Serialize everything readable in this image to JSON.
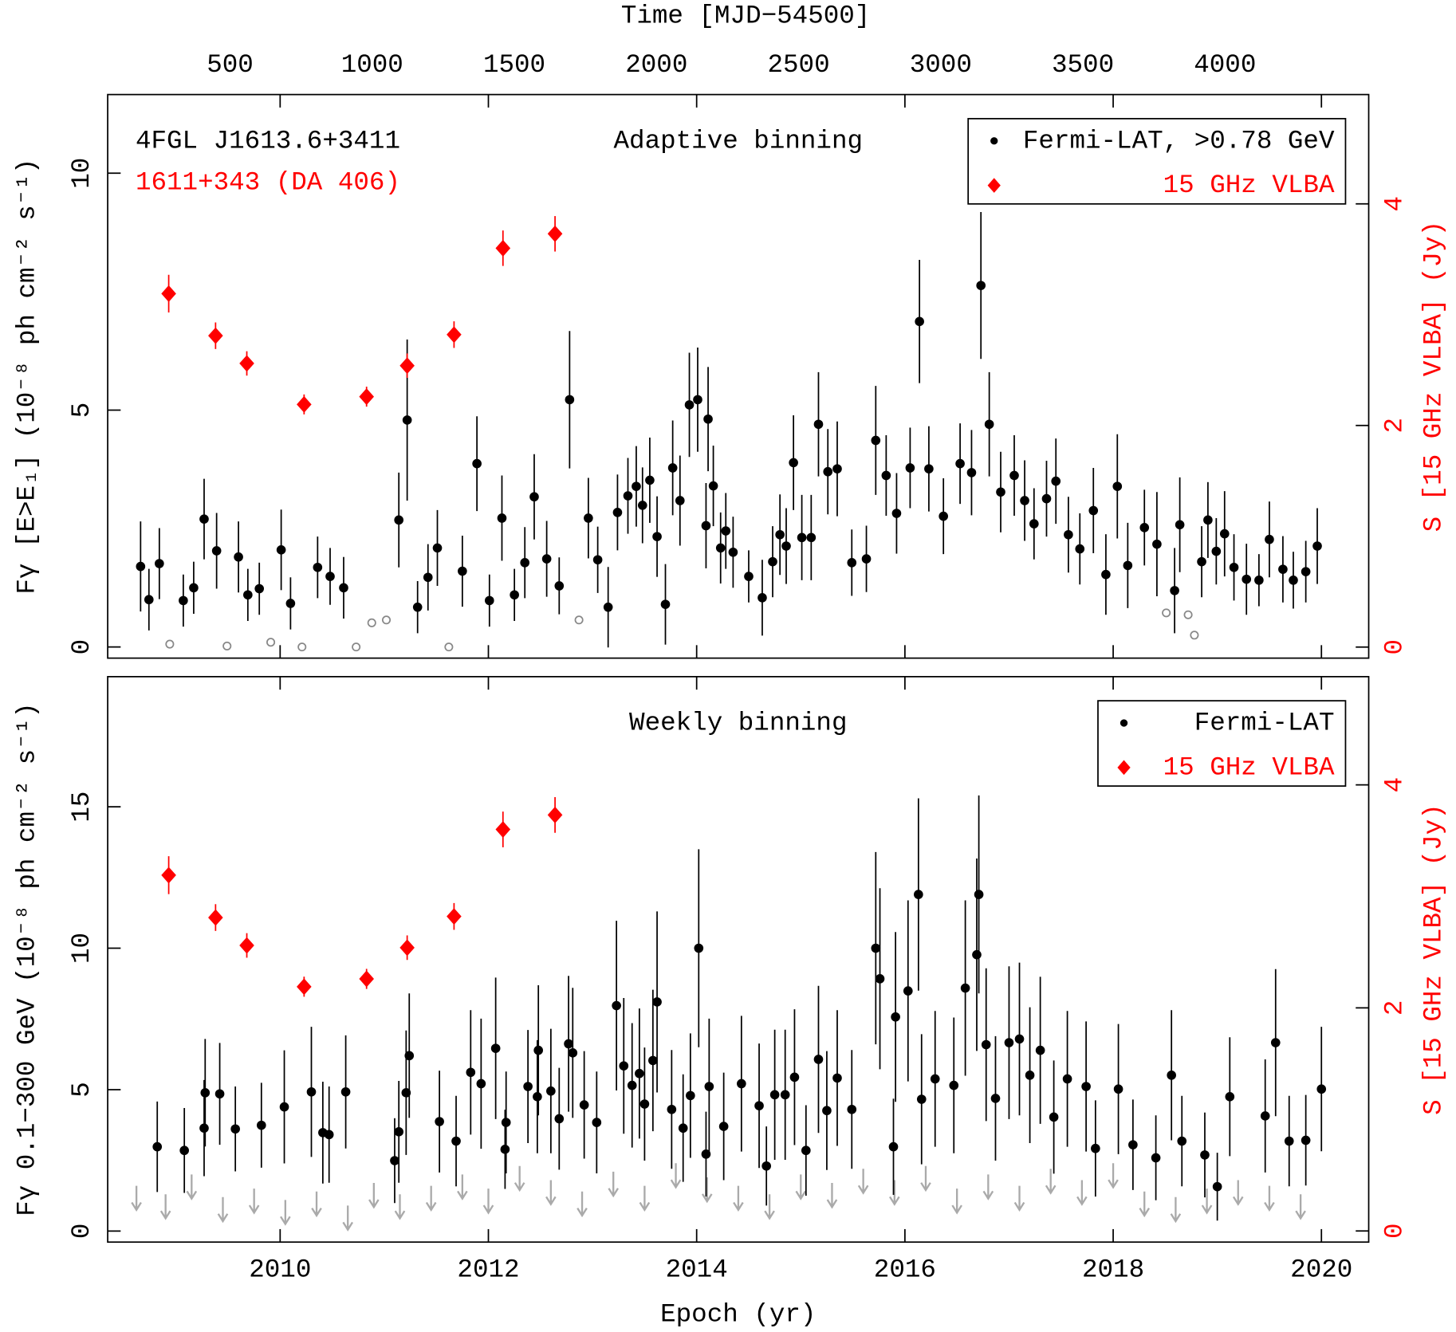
{
  "chart_data": [
    {
      "type": "scatter",
      "title": "Adaptive binning",
      "x2_label": "Time [MJD−54500]",
      "x2lim": [
        69.5,
        4505.5
      ],
      "x2ticks": [
        500,
        1000,
        1500,
        2000,
        2500,
        3000,
        3500,
        4000
      ],
      "y_label": "Fγ [E>E₁] (10⁻⁸ ph cm⁻² s⁻¹)",
      "y2_label": "S [15 GHz VLBA] (Jy)",
      "annotations": [
        {
          "text": "4FGL J1613.6+3411",
          "color": "#000000"
        },
        {
          "text": "1611+343 (DA 406)",
          "color": "#ff0000"
        }
      ],
      "xlim": [
        2008.344,
        2020.454
      ],
      "ylim": [
        -0.235,
        11.66
      ],
      "yticks": [
        0,
        5,
        10
      ],
      "y2lim": [
        -0.1,
        4.987
      ],
      "y2ticks": [
        0,
        2,
        4
      ],
      "legend": "upper right",
      "series": [
        {
          "name": "Fermi-LAT, >0.78 GeV",
          "color": "#000000",
          "marker": "circle",
          "x": [
            2008.66,
            2008.74,
            2008.84,
            2009.07,
            2009.17,
            2009.27,
            2009.39,
            2009.6,
            2009.69,
            2009.8,
            2010.01,
            2010.1,
            2010.36,
            2010.48,
            2010.61,
            2011.14,
            2011.22,
            2011.32,
            2011.42,
            2011.51,
            2011.75,
            2011.89,
            2012.01,
            2012.13,
            2012.25,
            2012.35,
            2012.44,
            2012.56,
            2012.68,
            2012.78,
            2012.96,
            2013.05,
            2013.15,
            2013.24,
            2013.34,
            2013.42,
            2013.48,
            2013.55,
            2013.62,
            2013.7,
            2013.77,
            2013.84,
            2013.93,
            2014.01,
            2014.09,
            2014.11,
            2014.16,
            2014.23,
            2014.28,
            2014.35,
            2014.5,
            2014.63,
            2014.73,
            2014.8,
            2014.86,
            2014.93,
            2015.01,
            2015.1,
            2015.17,
            2015.26,
            2015.35,
            2015.49,
            2015.63,
            2015.72,
            2015.82,
            2015.92,
            2016.05,
            2016.14,
            2016.23,
            2016.37,
            2016.53,
            2016.64,
            2016.73,
            2016.81,
            2016.92,
            2017.05,
            2017.15,
            2017.24,
            2017.36,
            2017.45,
            2017.57,
            2017.68,
            2017.81,
            2017.93,
            2018.04,
            2018.14,
            2018.3,
            2018.42,
            2018.59,
            2018.64,
            2018.85,
            2018.91,
            2018.99,
            2019.07,
            2019.16,
            2019.28,
            2019.4,
            2019.5,
            2019.63,
            2019.73,
            2019.85,
            2019.96
          ],
          "values": [
            1.7,
            1.0,
            1.76,
            0.98,
            1.25,
            2.7,
            2.03,
            1.9,
            1.1,
            1.23,
            2.05,
            0.92,
            1.68,
            1.49,
            1.25,
            2.68,
            4.79,
            0.84,
            1.47,
            2.09,
            1.6,
            3.87,
            0.98,
            2.72,
            1.1,
            1.78,
            3.17,
            1.86,
            1.29,
            5.22,
            2.72,
            1.84,
            0.84,
            2.84,
            3.19,
            3.39,
            2.99,
            3.52,
            2.33,
            0.9,
            3.78,
            3.09,
            5.11,
            5.22,
            2.56,
            4.81,
            3.4,
            2.09,
            2.45,
            2.0,
            1.49,
            1.04,
            1.8,
            2.37,
            2.13,
            3.89,
            2.31,
            2.31,
            4.7,
            3.7,
            3.76,
            1.78,
            1.86,
            4.36,
            3.62,
            2.82,
            3.78,
            6.87,
            3.76,
            2.76,
            3.87,
            3.68,
            7.63,
            4.7,
            3.27,
            3.62,
            3.09,
            2.6,
            3.13,
            3.5,
            2.37,
            2.07,
            2.88,
            1.53,
            3.39,
            1.72,
            2.52,
            2.17,
            1.19,
            2.58,
            1.8,
            2.68,
            2.02,
            2.39,
            1.68,
            1.43,
            1.41,
            2.27,
            1.64,
            1.41,
            1.59,
            2.13
          ],
          "errors": [
            0.95,
            0.65,
            0.75,
            0.55,
            0.55,
            0.85,
            0.8,
            0.75,
            0.55,
            0.55,
            0.85,
            0.55,
            0.65,
            0.6,
            0.65,
            1.0,
            1.7,
            0.55,
            0.7,
            0.8,
            0.75,
            1.0,
            0.55,
            0.9,
            0.55,
            0.75,
            0.9,
            0.8,
            0.6,
            1.45,
            0.85,
            0.7,
            0.85,
            0.8,
            0.8,
            0.85,
            0.8,
            0.9,
            0.85,
            0.85,
            1.0,
            0.95,
            1.1,
            1.1,
            0.9,
            1.1,
            0.85,
            0.75,
            0.8,
            0.75,
            0.55,
            0.8,
            0.75,
            0.85,
            0.8,
            1.0,
            0.9,
            0.9,
            1.1,
            0.9,
            1.0,
            0.7,
            0.7,
            1.15,
            0.85,
            0.85,
            0.85,
            1.3,
            0.9,
            0.8,
            0.85,
            0.9,
            1.55,
            1.1,
            0.85,
            0.85,
            0.85,
            0.75,
            0.8,
            0.9,
            0.8,
            0.75,
            0.9,
            0.85,
            1.1,
            0.9,
            0.8,
            1.1,
            0.9,
            1.0,
            0.75,
            0.8,
            0.7,
            0.9,
            0.7,
            0.75,
            0.55,
            0.8,
            0.7,
            0.6,
            0.65,
            0.8
          ]
        },
        {
          "name": "15 GHz VLBA",
          "color": "#ff0000",
          "marker": "diamond",
          "axis": "y2",
          "x": [
            2008.93,
            2009.38,
            2009.68,
            2010.23,
            2010.83,
            2011.22,
            2011.67,
            2012.14,
            2012.64
          ],
          "values": [
            3.19,
            2.81,
            2.56,
            2.19,
            2.26,
            2.54,
            2.82,
            3.6,
            3.73
          ],
          "errors": [
            0.17,
            0.12,
            0.11,
            0.09,
            0.09,
            0.11,
            0.12,
            0.16,
            0.16
          ]
        }
      ],
      "open_points": {
        "color": "#888888",
        "x": [
          2008.94,
          2009.49,
          2009.91,
          2010.21,
          2010.73,
          2010.88,
          2011.02,
          2011.62,
          2012.87,
          2018.51,
          2018.72,
          2018.78
        ],
        "values": [
          0.06,
          0.02,
          0.1,
          0.0,
          0.0,
          0.51,
          0.57,
          0.0,
          0.57,
          0.72,
          0.68,
          0.25
        ]
      }
    },
    {
      "type": "scatter",
      "title": "Weekly binning",
      "x_label": "Epoch (yr)",
      "y_label": "Fγ 0.1−300 GeV (10⁻⁸ ph cm⁻² s⁻¹)",
      "y2_label": "S [15 GHz VLBA] (Jy)",
      "xlim": [
        2008.344,
        2020.454
      ],
      "xticks": [
        2010,
        2012,
        2014,
        2016,
        2018,
        2020
      ],
      "ylim": [
        -0.39,
        19.6
      ],
      "yticks": [
        0,
        5,
        10,
        15
      ],
      "y2lim": [
        -0.1,
        4.97
      ],
      "y2ticks": [
        0,
        2,
        4
      ],
      "legend": "upper right",
      "series": [
        {
          "name": "Fermi-LAT",
          "color": "#000000",
          "marker": "circle",
          "x": [
            2008.82,
            2009.08,
            2009.27,
            2009.28,
            2009.42,
            2009.57,
            2009.82,
            2010.04,
            2010.3,
            2010.41,
            2010.47,
            2010.63,
            2011.1,
            2011.14,
            2011.21,
            2011.24,
            2011.53,
            2011.69,
            2011.83,
            2011.93,
            2012.07,
            2012.16,
            2012.17,
            2012.38,
            2012.47,
            2012.48,
            2012.6,
            2012.68,
            2012.77,
            2012.81,
            2012.92,
            2013.04,
            2013.23,
            2013.3,
            2013.38,
            2013.45,
            2013.5,
            2013.58,
            2013.62,
            2013.76,
            2013.87,
            2013.94,
            2014.02,
            2014.09,
            2014.12,
            2014.26,
            2014.43,
            2014.6,
            2014.67,
            2014.75,
            2014.85,
            2014.94,
            2015.05,
            2015.17,
            2015.25,
            2015.35,
            2015.49,
            2015.72,
            2015.76,
            2015.89,
            2015.91,
            2016.03,
            2016.13,
            2016.16,
            2016.29,
            2016.47,
            2016.58,
            2016.69,
            2016.71,
            2016.78,
            2016.87,
            2017.0,
            2017.1,
            2017.2,
            2017.3,
            2017.43,
            2017.56,
            2017.74,
            2017.83,
            2018.05,
            2018.19,
            2018.41,
            2018.56,
            2018.66,
            2018.88,
            2019.0,
            2019.12,
            2019.46,
            2019.56,
            2019.69,
            2019.85,
            2020.0
          ],
          "values": [
            2.98,
            2.85,
            3.64,
            4.89,
            4.85,
            3.61,
            3.74,
            4.39,
            4.92,
            3.48,
            3.41,
            4.92,
            2.49,
            3.51,
            4.89,
            6.2,
            3.87,
            3.18,
            5.61,
            5.21,
            6.46,
            2.89,
            3.84,
            5.11,
            4.75,
            6.39,
            4.95,
            3.97,
            6.62,
            6.3,
            4.46,
            3.84,
            7.97,
            5.84,
            5.15,
            5.57,
            4.49,
            6.03,
            8.1,
            4.3,
            3.64,
            4.79,
            10.0,
            2.72,
            5.11,
            3.7,
            5.21,
            4.43,
            2.3,
            4.82,
            4.82,
            5.44,
            2.85,
            6.07,
            4.26,
            5.41,
            4.3,
            10.0,
            8.92,
            2.98,
            7.57,
            8.49,
            11.9,
            4.66,
            5.38,
            5.15,
            8.59,
            9.77,
            11.9,
            6.59,
            4.69,
            6.66,
            6.79,
            5.51,
            6.39,
            4.03,
            5.38,
            5.11,
            2.92,
            5.02,
            3.05,
            2.59,
            5.51,
            3.18,
            2.69,
            1.57,
            4.75,
            4.07,
            6.66,
            3.18,
            3.21,
            5.02
          ],
          "errors": [
            1.6,
            1.5,
            1.7,
            1.9,
            1.8,
            1.5,
            1.5,
            2.0,
            2.3,
            1.8,
            1.7,
            2.0,
            1.5,
            1.8,
            2.2,
            2.2,
            1.8,
            1.6,
            2.2,
            2.3,
            2.5,
            1.4,
            1.8,
            2.0,
            2.0,
            2.3,
            2.2,
            1.8,
            2.4,
            2.3,
            1.9,
            1.8,
            3.0,
            2.4,
            2.2,
            2.3,
            2.0,
            2.5,
            3.2,
            2.1,
            1.9,
            2.2,
            3.5,
            1.5,
            2.4,
            1.9,
            2.4,
            2.2,
            1.4,
            2.3,
            2.3,
            2.4,
            1.6,
            2.6,
            2.1,
            2.4,
            2.1,
            3.4,
            3.2,
            1.7,
            3.0,
            3.2,
            3.4,
            2.3,
            2.4,
            2.4,
            3.1,
            3.4,
            3.5,
            2.7,
            2.2,
            2.7,
            2.7,
            2.4,
            2.6,
            2.0,
            2.4,
            2.3,
            1.7,
            2.3,
            1.6,
            1.5,
            2.3,
            1.6,
            1.5,
            1.2,
            2.1,
            2.0,
            2.6,
            1.6,
            1.6,
            2.2
          ]
        },
        {
          "name": "15 GHz VLBA",
          "color": "#ff0000",
          "marker": "diamond",
          "axis": "y2",
          "x": [
            2008.93,
            2009.38,
            2009.68,
            2010.23,
            2010.83,
            2011.22,
            2011.67,
            2012.14,
            2012.64
          ],
          "values": [
            3.19,
            2.81,
            2.56,
            2.19,
            2.26,
            2.54,
            2.82,
            3.6,
            3.73
          ],
          "errors": [
            0.17,
            0.12,
            0.11,
            0.09,
            0.09,
            0.11,
            0.12,
            0.16,
            0.16
          ]
        }
      ],
      "upper_limits": {
        "color": "#aaaaaa",
        "x": [
          2008.62,
          2008.9,
          2009.15,
          2009.45,
          2009.75,
          2010.05,
          2010.35,
          2010.65,
          2010.9,
          2011.15,
          2011.45,
          2011.75,
          2012.0,
          2012.3,
          2012.6,
          2012.9,
          2013.2,
          2013.5,
          2013.8,
          2014.1,
          2014.4,
          2014.7,
          2015.0,
          2015.3,
          2015.6,
          2015.9,
          2016.2,
          2016.5,
          2016.8,
          2017.1,
          2017.4,
          2017.7,
          2018.0,
          2018.3,
          2018.6,
          2018.9,
          2019.2,
          2019.5,
          2019.8
        ],
        "values": [
          1.6,
          1.3,
          2.0,
          1.2,
          1.5,
          1.1,
          1.4,
          0.9,
          1.7,
          1.3,
          1.6,
          2.0,
          1.5,
          2.3,
          1.8,
          1.4,
          2.1,
          1.6,
          2.4,
          1.9,
          1.6,
          1.3,
          2.0,
          1.7,
          2.2,
          1.8,
          2.3,
          1.5,
          2.0,
          1.6,
          2.2,
          1.8,
          2.4,
          1.4,
          1.2,
          1.5,
          1.8,
          1.6,
          1.3
        ]
      }
    }
  ]
}
